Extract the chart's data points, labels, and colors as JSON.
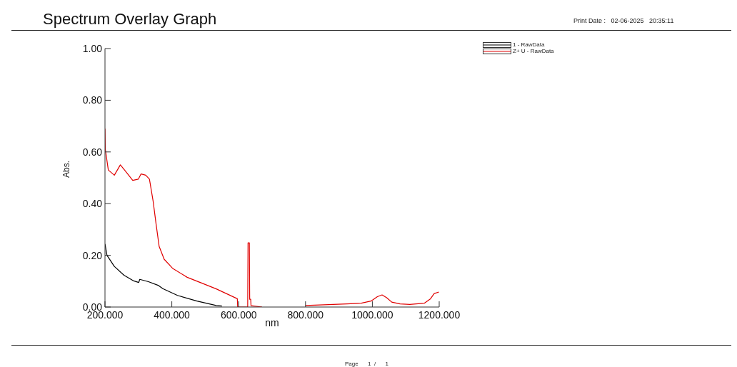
{
  "chart_data": {
    "type": "line",
    "title": "Spectrum Overlay Graph",
    "xlabel": "nm",
    "ylabel": "Abs.",
    "annotations": [
      "Print Date :   02-06-2025   20:35:11",
      "Page      1  /      1"
    ],
    "series": [
      {
        "name": "1 - RawData",
        "color": "#000000",
        "x": [
          200,
          206,
          228,
          257,
          286,
          301,
          304,
          330,
          359,
          373,
          417,
          475,
          533,
          550
        ],
        "values": [
          0.244,
          0.2,
          0.157,
          0.123,
          0.101,
          0.095,
          0.107,
          0.098,
          0.084,
          0.071,
          0.045,
          0.023,
          0.006,
          0.004
        ]
      },
      {
        "name": "Z+ U - RawData",
        "color": "#e00000",
        "x": [
          200,
          201,
          210,
          228,
          246,
          265,
          283,
          300,
          308,
          322,
          333,
          344,
          353,
          362,
          377,
          402,
          446,
          489,
          533,
          596,
          597,
          627,
          628,
          632,
          633,
          636,
          637,
          670,
          735,
          800,
          924,
          967,
          996,
          1015,
          1029,
          1043,
          1058,
          1083,
          1112,
          1156,
          1174,
          1185,
          1199
        ],
        "values": [
          0.69,
          0.61,
          0.53,
          0.51,
          0.55,
          0.52,
          0.49,
          0.495,
          0.515,
          0.51,
          0.495,
          0.41,
          0.32,
          0.235,
          0.185,
          0.15,
          0.115,
          0.093,
          0.07,
          0.032,
          0,
          0,
          0.248,
          0.248,
          0.03,
          0.03,
          0.005,
          0,
          null,
          0.006,
          0.012,
          0.015,
          0.023,
          0.04,
          0.047,
          0.036,
          0.019,
          0.012,
          0.01,
          0.015,
          0.032,
          0.052,
          0.058
        ]
      }
    ],
    "xlim": [
      200,
      1200
    ],
    "xticks": [
      {
        "value": 200,
        "label": "200.000"
      },
      {
        "value": 400,
        "label": "400.000"
      },
      {
        "value": 600,
        "label": "600.000"
      },
      {
        "value": 800,
        "label": "800.000"
      },
      {
        "value": 1000,
        "label": "1000.000"
      },
      {
        "value": 1200,
        "label": "1200.000"
      }
    ],
    "ylim": [
      0,
      1
    ],
    "yticks": [
      {
        "value": 0,
        "label": "0.00"
      },
      {
        "value": 0.2,
        "label": "0.20"
      },
      {
        "value": 0.4,
        "label": "0.40"
      },
      {
        "value": 0.6,
        "label": "0.60"
      },
      {
        "value": 0.8,
        "label": "0.80"
      },
      {
        "value": 1,
        "label": "1.00"
      }
    ],
    "grid": false,
    "legend": "top right",
    "marker": "none",
    "line_style": "solid"
  }
}
